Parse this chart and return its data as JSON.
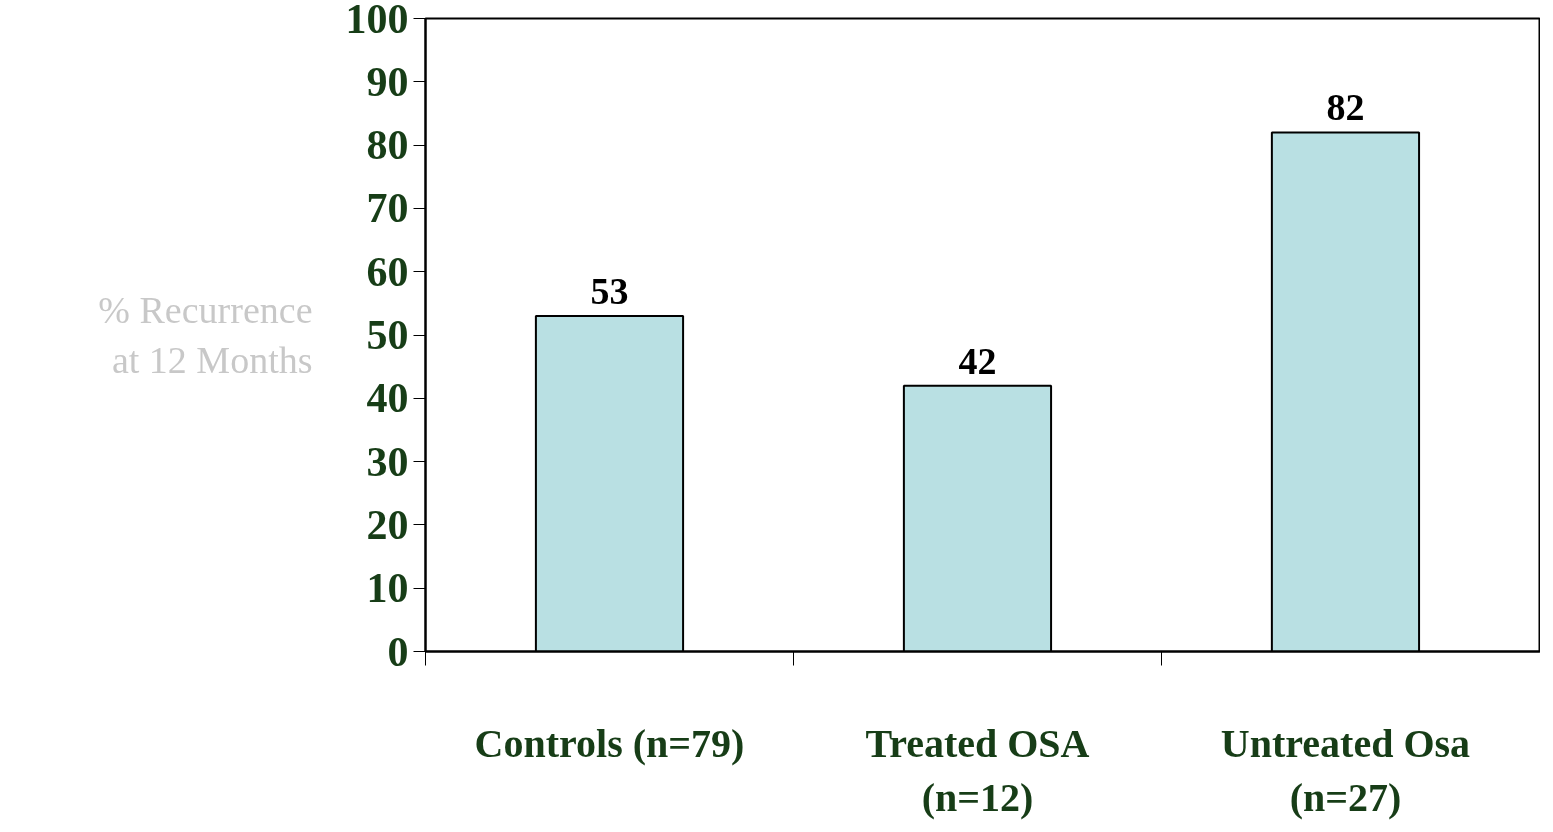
{
  "chart_data": {
    "type": "bar",
    "ylabel": "% Recurrence\nat 12 Months",
    "categories": [
      "Controls (n=79)",
      "Treated OSA\n(n=12)",
      "Untreated Osa\n(n=27)"
    ],
    "values": [
      53,
      42,
      82
    ],
    "color": "#b9e0e3",
    "ylim": [
      0,
      100
    ],
    "yticks": [
      0,
      10,
      20,
      30,
      40,
      50,
      60,
      70,
      80,
      90,
      100
    ],
    "data_labels": true,
    "grid": false
  }
}
